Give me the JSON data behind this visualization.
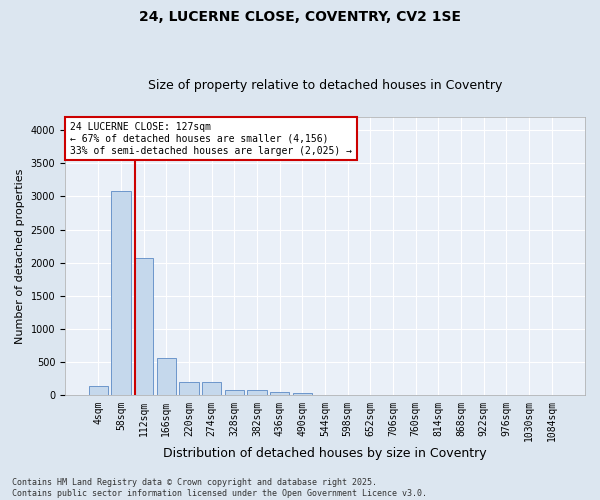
{
  "title": "24, LUCERNE CLOSE, COVENTRY, CV2 1SE",
  "subtitle": "Size of property relative to detached houses in Coventry",
  "xlabel": "Distribution of detached houses by size in Coventry",
  "ylabel": "Number of detached properties",
  "bar_color": "#c5d8ec",
  "bar_edge_color": "#5b8ac5",
  "background_color": "#eaf0f8",
  "grid_color": "#ffffff",
  "fig_color": "#dce6f0",
  "bins": [
    "4sqm",
    "58sqm",
    "112sqm",
    "166sqm",
    "220sqm",
    "274sqm",
    "328sqm",
    "382sqm",
    "436sqm",
    "490sqm",
    "544sqm",
    "598sqm",
    "652sqm",
    "706sqm",
    "760sqm",
    "814sqm",
    "868sqm",
    "922sqm",
    "976sqm",
    "1030sqm",
    "1084sqm"
  ],
  "values": [
    150,
    3080,
    2070,
    570,
    200,
    200,
    80,
    80,
    50,
    30,
    0,
    0,
    0,
    0,
    0,
    0,
    0,
    0,
    0,
    0,
    0
  ],
  "vline_x_index": 1.62,
  "property_sqm": 127,
  "annotation_text": "24 LUCERNE CLOSE: 127sqm\n← 67% of detached houses are smaller (4,156)\n33% of semi-detached houses are larger (2,025) →",
  "annotation_box_color": "#ffffff",
  "annotation_border_color": "#cc0000",
  "vline_color": "#cc0000",
  "footer": "Contains HM Land Registry data © Crown copyright and database right 2025.\nContains public sector information licensed under the Open Government Licence v3.0.",
  "ylim": [
    0,
    4200
  ],
  "yticks": [
    0,
    500,
    1000,
    1500,
    2000,
    2500,
    3000,
    3500,
    4000
  ],
  "title_fontsize": 10,
  "subtitle_fontsize": 9,
  "ylabel_fontsize": 8,
  "xlabel_fontsize": 9,
  "tick_fontsize": 7,
  "annot_fontsize": 7,
  "footer_fontsize": 6
}
